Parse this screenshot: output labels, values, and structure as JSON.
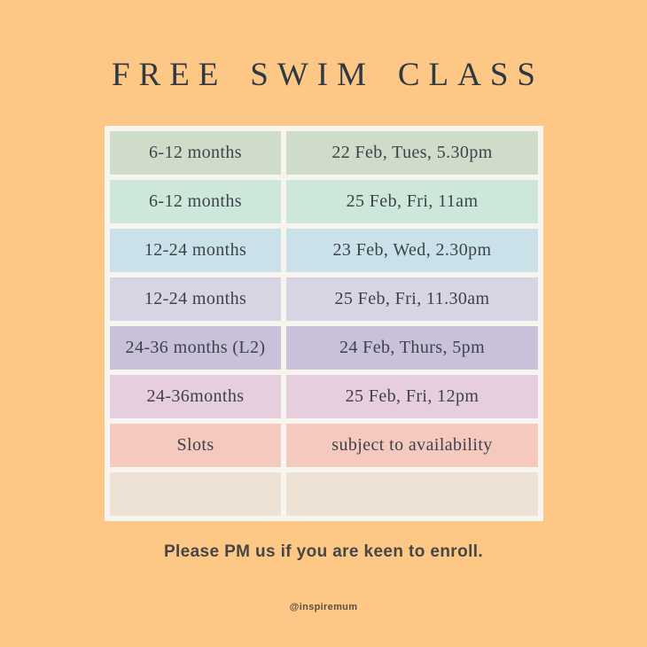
{
  "page": {
    "background_color": "#fdc886",
    "title": "FREE SWIM CLASS",
    "title_color": "#303844",
    "footer_note": "Please PM us if you are keen to enroll.",
    "footer_color": "#464646",
    "handle": "@inspiremum",
    "handle_color": "#5a4f46"
  },
  "table": {
    "frame_color": "#f8f4ef",
    "text_color": "#3d424b",
    "columns": [
      "age_group",
      "schedule"
    ],
    "rows": [
      {
        "age_group": "6-12 months",
        "schedule": "22 Feb, Tues, 5.30pm",
        "color": "#cfdcca"
      },
      {
        "age_group": "6-12 months",
        "schedule": "25 Feb, Fri, 11am",
        "color": "#cde7da"
      },
      {
        "age_group": "12-24 months",
        "schedule": "23 Feb, Wed, 2.30pm",
        "color": "#cae1e9"
      },
      {
        "age_group": "12-24 months",
        "schedule": "25 Feb, Fri, 11.30am",
        "color": "#d7d5e3"
      },
      {
        "age_group": "24-36 months (L2)",
        "schedule": "24 Feb, Thurs, 5pm",
        "color": "#c9c1d9"
      },
      {
        "age_group": "24-36months",
        "schedule": "25 Feb, Fri, 12pm",
        "color": "#e6cedf"
      },
      {
        "age_group": "Slots",
        "schedule": "subject to availability",
        "color": "#f5c9bd"
      },
      {
        "age_group": "",
        "schedule": "",
        "color": "#eee2d5"
      }
    ]
  }
}
